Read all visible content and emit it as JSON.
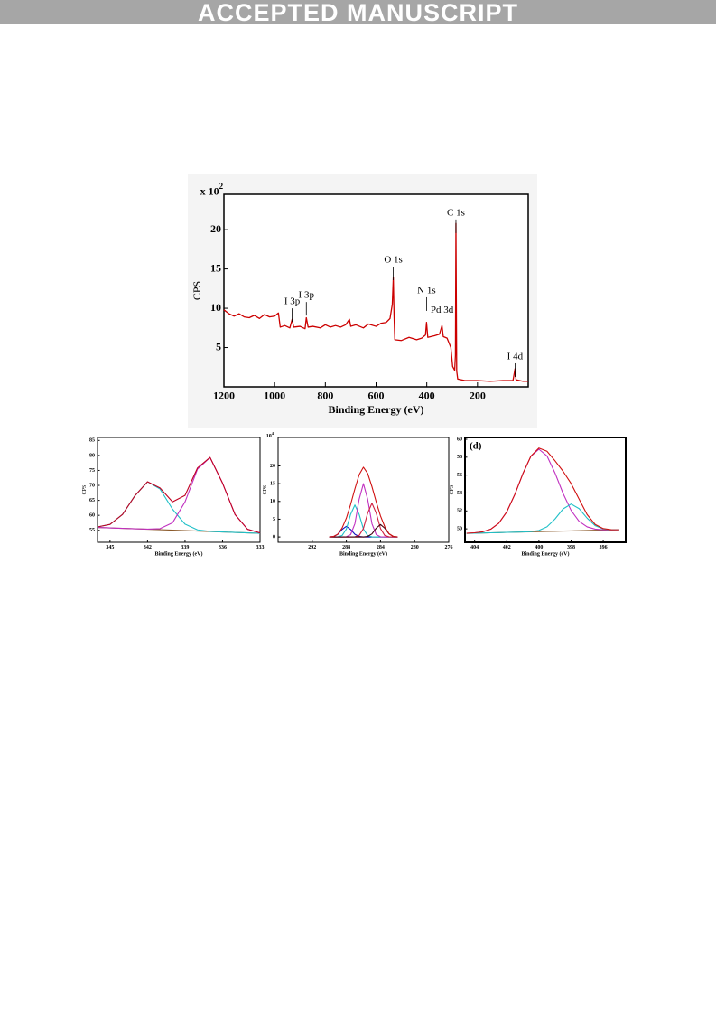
{
  "header": "ACCEPTED MANUSCRIPT",
  "chart_data": [
    {
      "type": "line",
      "x_label": "Binding Energy (eV)",
      "y_label": "CPS",
      "y_multiplier": {
        "base": "x 10",
        "exponent": "2"
      },
      "xlim": [
        1200,
        0
      ],
      "ylim": [
        0,
        24.5
      ],
      "xticks": [
        1200,
        1000,
        800,
        600,
        400,
        200
      ],
      "yticks": [
        5,
        10,
        15,
        20
      ],
      "x": [
        1200,
        1180,
        1160,
        1140,
        1120,
        1100,
        1080,
        1060,
        1040,
        1020,
        1000,
        985,
        978,
        960,
        940,
        931,
        925,
        900,
        880,
        875,
        868,
        850,
        820,
        800,
        780,
        760,
        740,
        720,
        705,
        700,
        680,
        650,
        630,
        600,
        580,
        560,
        545,
        536,
        532,
        529,
        526,
        500,
        470,
        440,
        420,
        405,
        401,
        396,
        370,
        350,
        340,
        335,
        320,
        305,
        298,
        290,
        287,
        285,
        282,
        278,
        250,
        200,
        150,
        100,
        60,
        52,
        48,
        20,
        0
      ],
      "series": [
        {
          "color": "#cc0000",
          "values": [
            9.8,
            9.3,
            9.0,
            9.3,
            8.9,
            8.8,
            9.1,
            8.7,
            9.2,
            8.9,
            9.0,
            9.4,
            7.6,
            7.8,
            7.5,
            8.6,
            7.6,
            7.7,
            7.4,
            8.8,
            7.6,
            7.7,
            7.5,
            7.9,
            7.6,
            7.8,
            7.6,
            7.9,
            8.6,
            7.7,
            7.9,
            7.5,
            8.0,
            7.7,
            8.1,
            8.2,
            8.7,
            10.5,
            13.9,
            9.0,
            6.0,
            5.9,
            6.3,
            6.0,
            6.2,
            6.6,
            8.2,
            6.3,
            6.5,
            6.7,
            7.8,
            6.4,
            6.2,
            5.0,
            2.6,
            2.1,
            4.0,
            20.8,
            2.0,
            1.0,
            0.8,
            0.8,
            0.7,
            0.8,
            0.8,
            2.3,
            0.9,
            0.7,
            0.7
          ]
        }
      ],
      "annotations": [
        {
          "text": "I 3p",
          "x": 931,
          "y": 10.8
        },
        {
          "text": "I 3p",
          "x": 875,
          "y": 11.6
        },
        {
          "text": "O 1s",
          "x": 532,
          "y": 16.1
        },
        {
          "text": "N 1s",
          "x": 401,
          "y": 12.2
        },
        {
          "text": "Pd 3d",
          "x": 340,
          "y": 9.7
        },
        {
          "text": "C 1s",
          "x": 285,
          "y": 22.1
        },
        {
          "text": "I 4d",
          "x": 52,
          "y": 3.8
        }
      ]
    },
    {
      "type": "line",
      "x_label": "Binding Energy (eV)",
      "y_label": "CPS",
      "xlim": [
        346,
        333
      ],
      "ylim": [
        51,
        86
      ],
      "xticks": [
        345,
        342,
        339,
        336,
        333
      ],
      "yticks": [
        55,
        60,
        65,
        70,
        75,
        80,
        85
      ],
      "x": [
        346,
        345,
        344,
        343,
        342,
        341,
        340,
        339,
        338,
        337,
        336,
        335,
        334,
        333
      ],
      "series": [
        {
          "color": "#8b5a2b",
          "values": [
            55.95,
            55.8,
            55.65,
            55.5,
            55.35,
            55.2,
            55.05,
            54.9,
            54.75,
            54.6,
            54.45,
            54.3,
            54.15,
            54.0
          ]
        },
        {
          "color": "#20c0c8",
          "values": [
            56.13,
            56.98,
            60.31,
            66.58,
            71.19,
            68.79,
            62.05,
            57.07,
            55.15,
            54.64,
            54.45,
            54.3,
            54.15,
            54.0
          ]
        },
        {
          "color": "#c030c0",
          "values": [
            55.95,
            55.8,
            55.65,
            55.5,
            55.38,
            55.55,
            57.51,
            64.48,
            75.45,
            79.3,
            70.75,
            60.28,
            55.35,
            54.13
          ]
        },
        {
          "color": "#c00020",
          "values": [
            56.13,
            56.98,
            60.31,
            66.58,
            71.22,
            69.14,
            64.51,
            66.65,
            75.85,
            79.34,
            70.75,
            60.28,
            55.35,
            54.13
          ]
        }
      ]
    },
    {
      "type": "line",
      "x_label": "Binding Energy (eV)",
      "y_label": "CPS",
      "y_multiplier": {
        "base": "10",
        "exponent": "4"
      },
      "xlim": [
        296,
        276
      ],
      "ylim": [
        -1.5,
        28
      ],
      "xticks": [
        292,
        288,
        284,
        280,
        276
      ],
      "yticks": [
        0,
        5,
        10,
        15,
        20
      ],
      "x": [
        290,
        289.5,
        289,
        288.5,
        288,
        287.5,
        287,
        286.5,
        286,
        285.5,
        285,
        284.5,
        284,
        283.5,
        283,
        282.5,
        282
      ],
      "series": [
        {
          "color": "#8b5a2b",
          "values": [
            0,
            0,
            0,
            0,
            0,
            0,
            0,
            0,
            0,
            0,
            0,
            0,
            0,
            0,
            0,
            0,
            0
          ]
        },
        {
          "color": "#1010c0",
          "values": [
            0.01,
            0.13,
            0.75,
            2.12,
            3,
            2.12,
            0.75,
            0.13,
            0.01,
            0,
            0,
            0,
            0,
            0,
            0,
            0,
            0
          ]
        },
        {
          "color": "#20c0c8",
          "values": [
            0,
            0,
            0.04,
            0.4,
            2.24,
            6.36,
            9,
            6.36,
            2.24,
            0.4,
            0.04,
            0,
            0,
            0,
            0,
            0,
            0
          ]
        },
        {
          "color": "#c030c0",
          "values": [
            0,
            0,
            0,
            0,
            0.06,
            0.66,
            3.74,
            10.6,
            15,
            10.6,
            3.74,
            0.66,
            0.06,
            0,
            0,
            0,
            0
          ]
        },
        {
          "color": "#d02040",
          "values": [
            0,
            0,
            0,
            0,
            0,
            0,
            0.04,
            0.42,
            2.37,
            6.72,
            9.5,
            6.72,
            2.37,
            0.42,
            0.04,
            0,
            0
          ]
        },
        {
          "color": "#400010",
          "values": [
            0,
            0,
            0,
            0,
            0,
            0,
            0,
            0,
            0.01,
            0.15,
            0.87,
            2.47,
            3.5,
            2.47,
            0.87,
            0.15,
            0.01
          ]
        },
        {
          "color": "#d01010",
          "values": [
            0.01,
            0.13,
            0.79,
            2.52,
            5.3,
            9.14,
            13.53,
            17.51,
            19.63,
            17.87,
            14.15,
            9.85,
            5.93,
            2.89,
            0.91,
            0.15,
            0.01
          ]
        }
      ]
    },
    {
      "type": "line",
      "panel_label": "(d)",
      "x_label": "Binding Energy (eV)",
      "y_label": "CPS",
      "xlim": [
        404.6,
        394.6
      ],
      "ylim": [
        48.5,
        60.2
      ],
      "xticks": [
        404,
        402,
        400,
        398,
        396
      ],
      "yticks": [
        50,
        52,
        54,
        56,
        58,
        60
      ],
      "x": [
        404.5,
        404,
        403.5,
        403,
        402.5,
        402,
        401.5,
        401,
        400.5,
        400,
        399.5,
        399,
        398.5,
        398,
        397.5,
        397,
        396.5,
        396,
        395.5,
        395
      ],
      "series": [
        {
          "color": "#8b5a2b",
          "values": [
            49.5,
            49.52,
            49.54,
            49.56,
            49.58,
            49.61,
            49.63,
            49.65,
            49.67,
            49.69,
            49.71,
            49.73,
            49.75,
            49.77,
            49.79,
            49.82,
            49.84,
            49.86,
            49.88,
            49.9
          ]
        },
        {
          "color": "#c030c0",
          "values": [
            49.51,
            49.56,
            49.67,
            49.96,
            50.63,
            51.9,
            53.84,
            56.15,
            58.1,
            58.89,
            58.14,
            56.23,
            53.96,
            52.06,
            50.84,
            50.22,
            49.97,
            49.9,
            49.89,
            49.9
          ]
        },
        {
          "color": "#20c0c8",
          "values": [
            49.5,
            49.52,
            49.54,
            49.56,
            49.58,
            49.61,
            49.63,
            49.65,
            49.69,
            49.82,
            50.23,
            51.1,
            52.22,
            52.77,
            52.26,
            51.19,
            50.36,
            49.99,
            49.9,
            49.9
          ]
        },
        {
          "color": "#d01010",
          "values": [
            49.51,
            49.56,
            49.67,
            49.96,
            50.63,
            51.9,
            53.84,
            56.15,
            58.12,
            59.02,
            58.66,
            57.6,
            56.43,
            55.06,
            53.31,
            51.59,
            50.49,
            50.03,
            49.91,
            49.9
          ]
        }
      ]
    }
  ]
}
